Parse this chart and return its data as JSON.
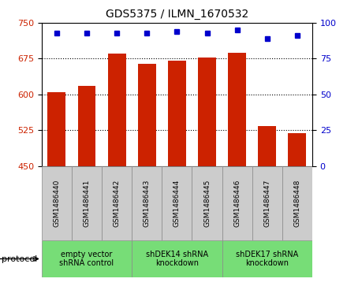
{
  "title": "GDS5375 / ILMN_1670532",
  "categories": [
    "GSM1486440",
    "GSM1486441",
    "GSM1486442",
    "GSM1486443",
    "GSM1486444",
    "GSM1486445",
    "GSM1486446",
    "GSM1486447",
    "GSM1486448"
  ],
  "bar_values": [
    604,
    618,
    685,
    664,
    671,
    678,
    688,
    534,
    519
  ],
  "percentile_values": [
    93,
    93,
    93,
    93,
    94,
    93,
    95,
    89,
    91
  ],
  "ylim_left": [
    450,
    750
  ],
  "ylim_right": [
    0,
    100
  ],
  "yticks_left": [
    450,
    525,
    600,
    675,
    750
  ],
  "yticks_right": [
    0,
    25,
    50,
    75,
    100
  ],
  "bar_color": "#cc2200",
  "dot_color": "#0000cc",
  "bg_color": "#ffffff",
  "bar_width": 0.6,
  "tick_area_color": "#cccccc",
  "protocol_color": "#77dd77",
  "group_labels": [
    "empty vector\nshRNA control",
    "shDEK14 shRNA\nknockdown",
    "shDEK17 shRNA\nknockdown"
  ],
  "group_ranges": [
    [
      0,
      3
    ],
    [
      3,
      6
    ],
    [
      6,
      9
    ]
  ]
}
